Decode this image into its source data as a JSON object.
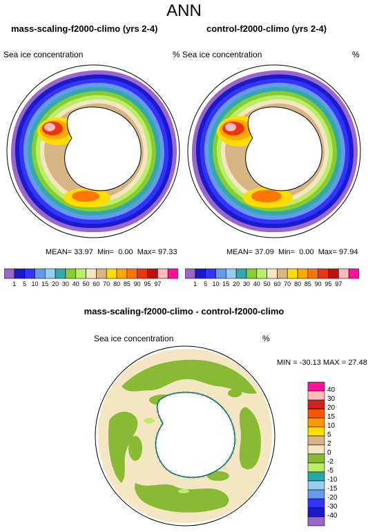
{
  "main_title": "ANN",
  "panels": [
    {
      "title": "mass-scaling-f2000-climo (yrs 2-4)",
      "variable": "Sea ice concentration",
      "units": "%",
      "mean_label": "MEAN=",
      "mean": "33.97",
      "min_label": "Min=",
      "min": "0.00",
      "max_label": "Max=",
      "max": "97.33"
    },
    {
      "title": "control-f2000-climo (yrs 2-4)",
      "variable": "Sea ice concentration",
      "units": "%",
      "mean_label": "MEAN=",
      "mean": "37.09",
      "min_label": "Min=",
      "min": "0.00",
      "max_label": "Max=",
      "max": "97.94"
    }
  ],
  "diff_panel": {
    "title": "mass-scaling-f2000-climo - control-f2000-climo",
    "variable": "Sea ice concentration",
    "units": "%",
    "minmax": "MIN = -30.13 MAX =  27.48"
  },
  "colorbar_main": {
    "labels": [
      "1",
      "5",
      "10",
      "15",
      "20",
      "30",
      "40",
      "50",
      "60",
      "70",
      "80",
      "85",
      "90",
      "95",
      "97"
    ],
    "colors": [
      "#9966cc",
      "#1a1acc",
      "#3333ff",
      "#6699ee",
      "#99ccee",
      "#33aaaa",
      "#88cc33",
      "#bbee66",
      "#f5e6c3",
      "#d8b585",
      "#ffdd00",
      "#ffaa00",
      "#ff7700",
      "#ee3311",
      "#bb1111",
      "#ffbbbb",
      "#ff1199"
    ]
  },
  "colorbar_diff": {
    "labels": [
      "40",
      "30",
      "20",
      "15",
      "10",
      "5",
      "2",
      "0",
      "-2",
      "-5",
      "-10",
      "-15",
      "-20",
      "-30",
      "-40"
    ],
    "colors": [
      "#ff1199",
      "#ffbbbb",
      "#cc2222",
      "#ff5500",
      "#ff9900",
      "#ffdd00",
      "#d8b585",
      "#f5e6c3",
      "#88bb33",
      "#bbee66",
      "#22aaaa",
      "#99ccee",
      "#6699ee",
      "#3333ff",
      "#1a1acc",
      "#9966cc"
    ]
  }
}
